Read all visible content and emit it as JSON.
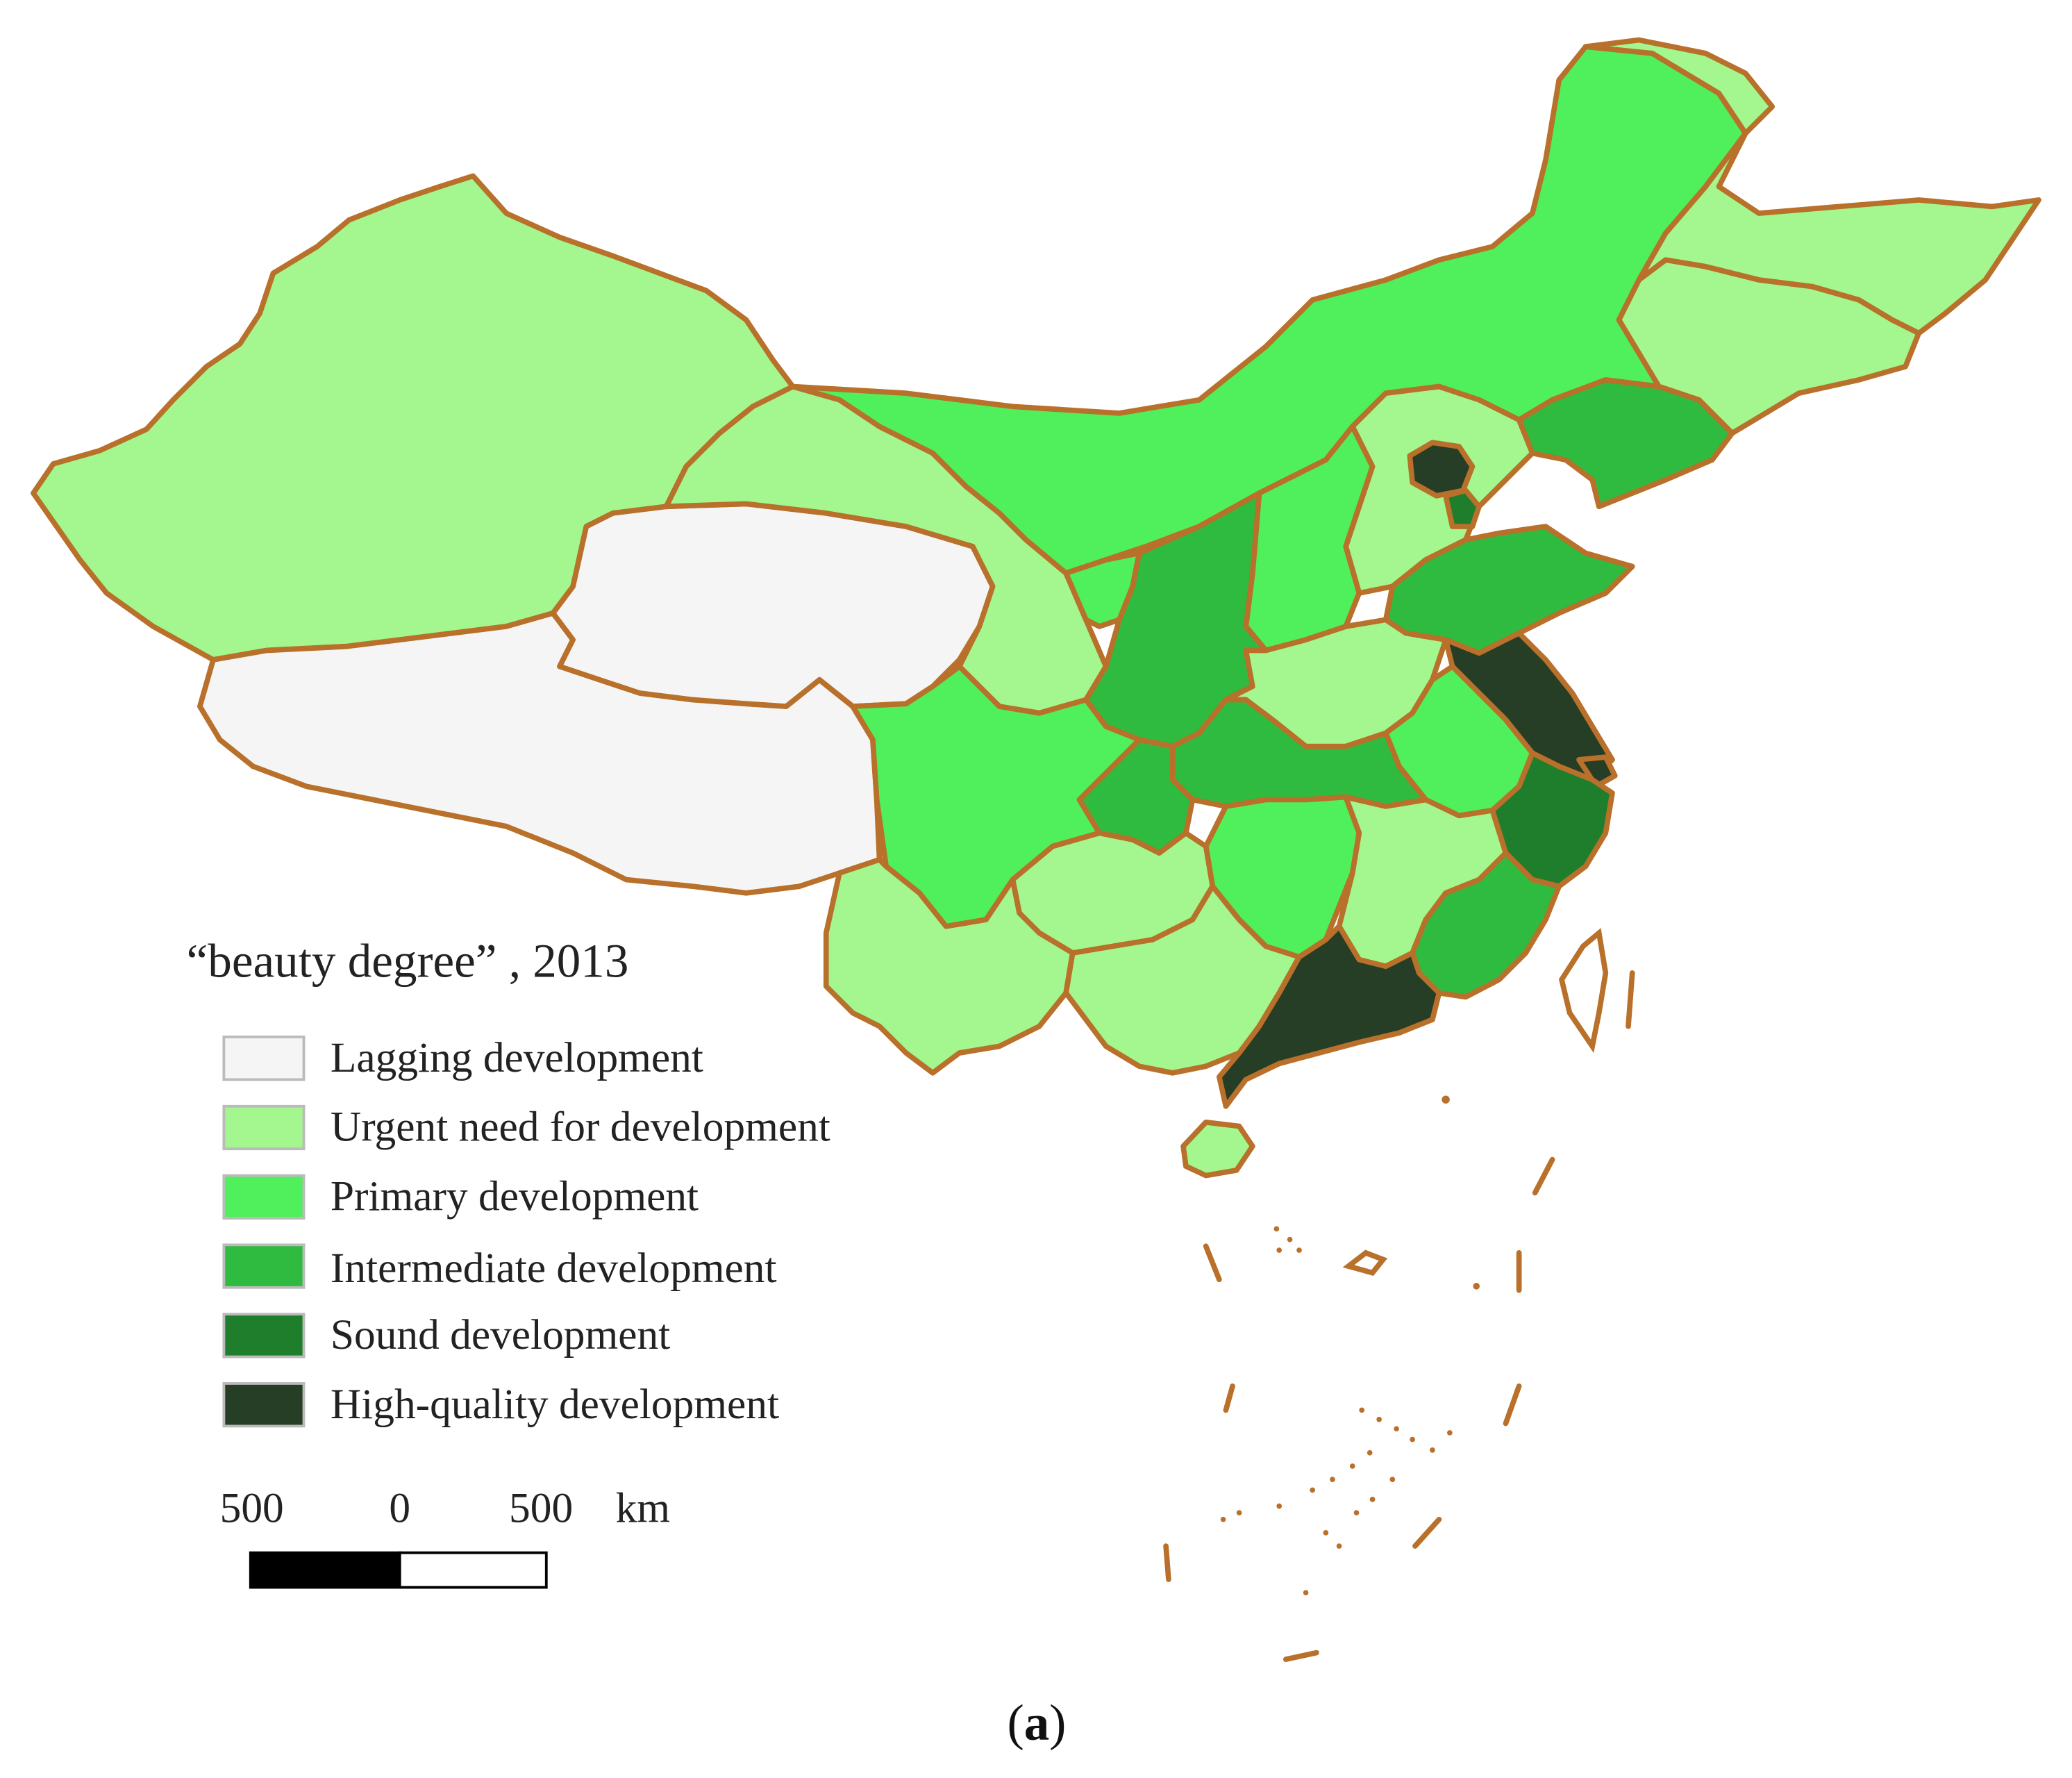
{
  "legend": {
    "title": "“beauty degree” , 2013",
    "items": [
      {
        "label": "Lagging development",
        "color": "#f5f5f5"
      },
      {
        "label": "Urgent need for development",
        "color": "#a3f78e"
      },
      {
        "label": "Primary development",
        "color": "#50ef5c"
      },
      {
        "label": "Intermediate development",
        "color": "#2fbb3f"
      },
      {
        "label": "Sound development",
        "color": "#1f7e2c"
      },
      {
        "label": "High-quality development",
        "color": "#263d26"
      }
    ]
  },
  "scale_bar": {
    "label_left": "500",
    "label_center": "0",
    "label_right": "500",
    "unit": "km"
  },
  "caption": {
    "open": "(",
    "letter": "a",
    "close": ")"
  },
  "colors": {
    "border": "#b8702a",
    "lagging": "#f5f5f5",
    "urgent": "#a3f78e",
    "primary": "#50ef5c",
    "intermediate": "#2fbb3f",
    "sound": "#1f7e2c",
    "high_quality": "#263d26"
  }
}
